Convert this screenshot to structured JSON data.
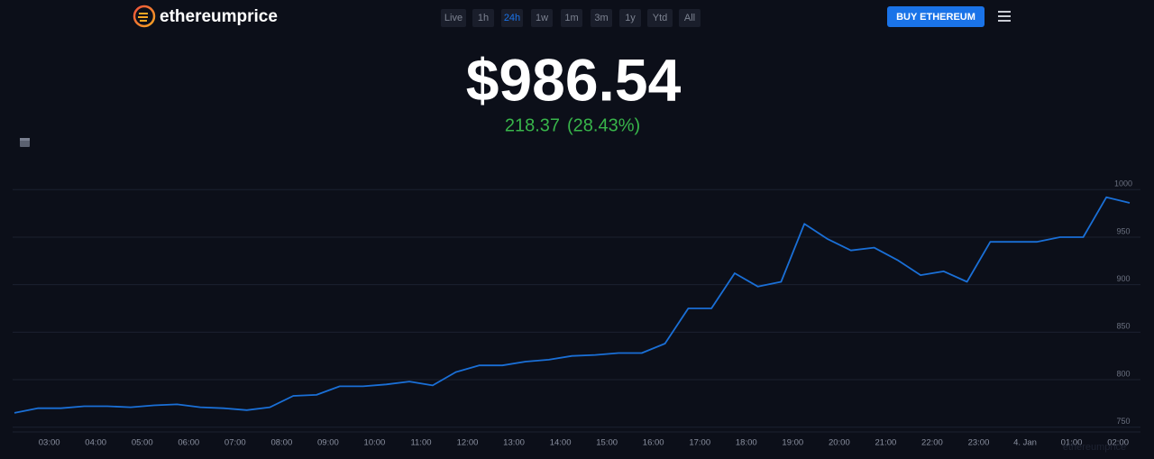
{
  "header": {
    "logo": "ethereumprice",
    "ranges": [
      "Live",
      "1h",
      "24h",
      "1w",
      "1m",
      "3m",
      "1y",
      "Ytd",
      "All"
    ],
    "active_range_index": 2,
    "button": "BUY ETHEREUM"
  },
  "price": "$986.54",
  "change": "218.37",
  "change_pct": "(28.43%)",
  "chart_data": {
    "type": "line",
    "color": "#1a6fd6",
    "grid": true,
    "watermark": "ethereumprice",
    "x": [
      "02:15",
      "02:45",
      "03:15",
      "03:45",
      "04:15",
      "04:45",
      "05:15",
      "05:45",
      "06:15",
      "06:45",
      "07:15",
      "07:45",
      "08:15",
      "08:45",
      "09:15",
      "09:45",
      "10:15",
      "10:45",
      "11:15",
      "11:45",
      "12:15",
      "12:45",
      "13:15",
      "13:45",
      "14:15",
      "14:45",
      "15:15",
      "15:45",
      "16:15",
      "16:45",
      "17:15",
      "17:45",
      "18:15",
      "18:45",
      "19:15",
      "19:45",
      "20:15",
      "20:45",
      "21:15",
      "21:45",
      "22:15",
      "22:45",
      "23:15",
      "23:45",
      "00:15",
      "00:45",
      "01:15",
      "01:45",
      "02:15"
    ],
    "values": [
      765,
      770,
      770,
      772,
      772,
      771,
      773,
      774,
      771,
      770,
      768,
      771,
      783,
      784,
      793,
      793,
      795,
      798,
      794,
      808,
      815,
      815,
      819,
      821,
      825,
      826,
      828,
      828,
      838,
      875,
      875,
      912,
      898,
      903,
      964,
      948,
      936,
      939,
      926,
      910,
      914,
      903,
      945,
      945,
      945,
      950,
      950,
      992,
      986
    ],
    "xticks": [
      "03:00",
      "04:00",
      "05:00",
      "06:00",
      "07:00",
      "08:00",
      "09:00",
      "10:00",
      "11:00",
      "12:00",
      "13:00",
      "14:00",
      "15:00",
      "16:00",
      "17:00",
      "18:00",
      "19:00",
      "20:00",
      "21:00",
      "22:00",
      "23:00",
      {
        "value": "00:00",
        "label": "4. Jan"
      },
      "01:00",
      "02:00"
    ],
    "ylim": [
      745,
      1005
    ],
    "yticks": [
      750,
      800,
      850,
      900,
      950,
      1000
    ]
  }
}
